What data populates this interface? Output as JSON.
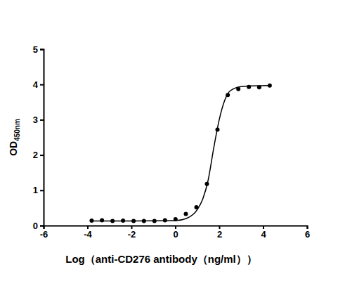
{
  "chart_data": {
    "type": "scatter",
    "x_label": "Log（anti-CD276 antibody（ng/ml））",
    "y_label": "OD450nm",
    "xlim": [
      -6,
      6
    ],
    "xticks": [
      -6,
      -4,
      -2,
      0,
      2,
      4,
      6
    ],
    "ylim": [
      0,
      5
    ],
    "yticks": [
      0,
      1,
      2,
      3,
      4,
      5
    ],
    "grid": false,
    "series": [
      {
        "type": "scatter",
        "color": "#000000",
        "marker": "circle",
        "x": [
          -3.81,
          -3.34,
          -2.86,
          -2.38,
          -1.9,
          -1.43,
          -0.95,
          -0.47,
          0.01,
          0.48,
          0.96,
          1.44,
          1.92,
          2.39,
          2.87,
          3.35,
          3.82,
          4.3
        ],
        "values": [
          0.14,
          0.15,
          0.13,
          0.14,
          0.13,
          0.13,
          0.13,
          0.15,
          0.18,
          0.33,
          0.52,
          1.18,
          2.72,
          3.7,
          3.87,
          3.93,
          3.92,
          3.97
        ]
      },
      {
        "type": "line",
        "color": "#000000",
        "line_style": "solid",
        "x": [
          -3.81,
          -2.0,
          0.0,
          0.5,
          1.0,
          1.25,
          1.5,
          1.75,
          2.0,
          2.25,
          2.5,
          3.0,
          3.5,
          4.3
        ],
        "values": [
          0.13,
          0.13,
          0.14,
          0.2,
          0.45,
          0.75,
          1.3,
          2.2,
          3.0,
          3.55,
          3.82,
          3.94,
          3.96,
          3.97
        ]
      }
    ]
  }
}
